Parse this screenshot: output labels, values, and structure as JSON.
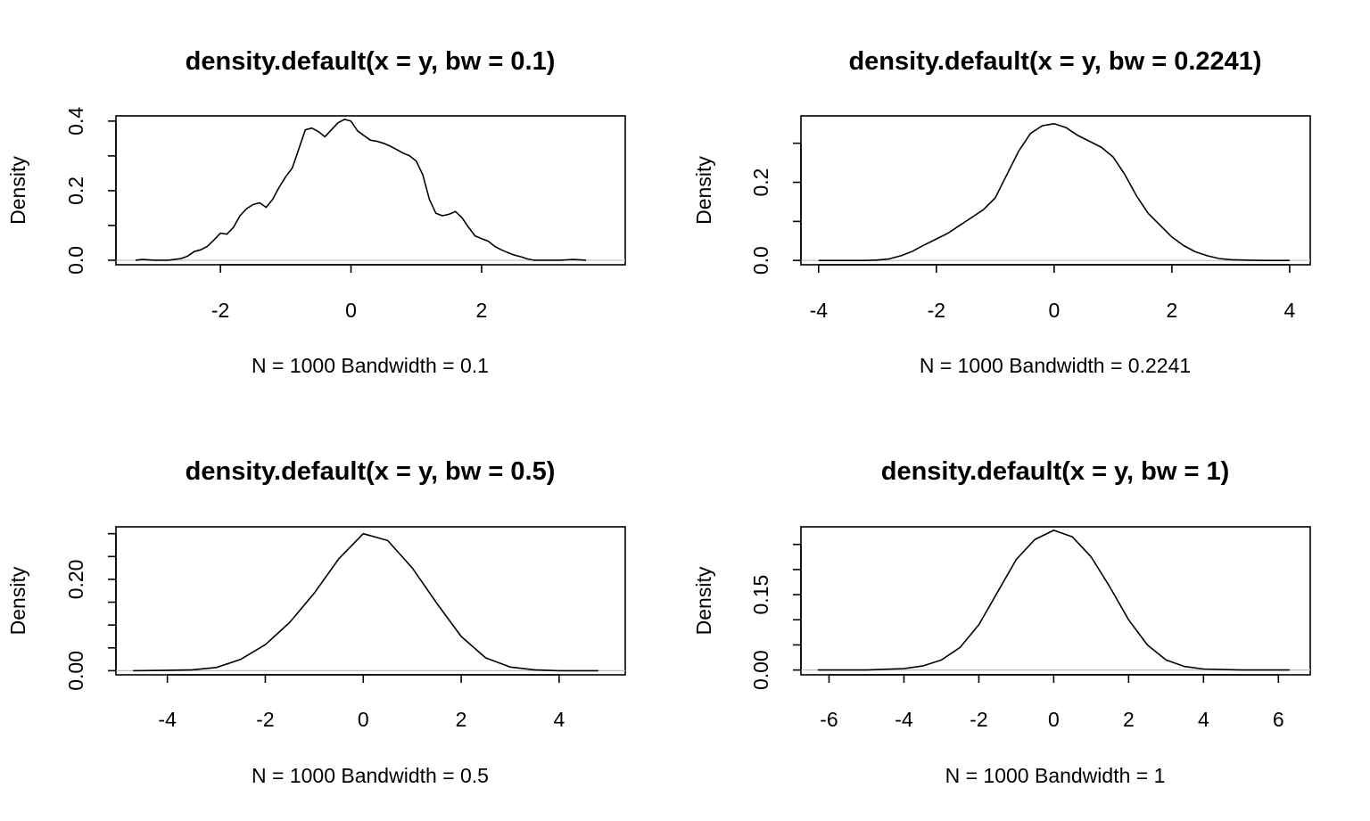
{
  "chart_data": [
    {
      "type": "line",
      "title": "density.default(x = y, bw = 0.1)",
      "xlabel": "N = 1000   Bandwidth = 0.1",
      "ylabel": "Density",
      "xlim": [
        -3.6,
        4.2
      ],
      "ylim": [
        -0.013,
        0.415
      ],
      "xticks": [
        -2,
        0,
        2
      ],
      "xtick_labels": [
        "-2",
        "0",
        "2"
      ],
      "yticks": [
        0.0,
        0.1,
        0.2,
        0.3,
        0.4
      ],
      "ytick_labels": {
        "0": "0.0",
        "0.2": "0.2",
        "0.4": "0.4"
      },
      "x": [
        -3.3,
        -3.2,
        -3.0,
        -2.8,
        -2.6,
        -2.5,
        -2.4,
        -2.3,
        -2.2,
        -2.1,
        -2.0,
        -1.9,
        -1.8,
        -1.7,
        -1.6,
        -1.5,
        -1.4,
        -1.3,
        -1.2,
        -1.1,
        -1.0,
        -0.9,
        -0.8,
        -0.7,
        -0.6,
        -0.5,
        -0.4,
        -0.3,
        -0.2,
        -0.1,
        0.0,
        0.1,
        0.2,
        0.3,
        0.4,
        0.5,
        0.6,
        0.7,
        0.8,
        0.9,
        1.0,
        1.1,
        1.2,
        1.3,
        1.4,
        1.5,
        1.6,
        1.7,
        1.8,
        1.9,
        2.0,
        2.1,
        2.2,
        2.3,
        2.4,
        2.5,
        2.6,
        2.7,
        2.8,
        3.0,
        3.2,
        3.4,
        3.6
      ],
      "y": [
        0.0,
        0.002,
        0.0,
        0.0,
        0.005,
        0.012,
        0.025,
        0.03,
        0.04,
        0.058,
        0.078,
        0.075,
        0.095,
        0.128,
        0.148,
        0.16,
        0.165,
        0.152,
        0.175,
        0.21,
        0.24,
        0.265,
        0.32,
        0.375,
        0.38,
        0.37,
        0.355,
        0.375,
        0.395,
        0.405,
        0.4,
        0.372,
        0.358,
        0.345,
        0.342,
        0.336,
        0.328,
        0.318,
        0.308,
        0.3,
        0.285,
        0.245,
        0.175,
        0.135,
        0.128,
        0.132,
        0.14,
        0.122,
        0.095,
        0.07,
        0.062,
        0.055,
        0.04,
        0.03,
        0.022,
        0.015,
        0.01,
        0.004,
        0.0,
        0.0,
        0.0,
        0.002,
        0.0
      ]
    },
    {
      "type": "line",
      "title": "density.default(x = y, bw = 0.2241)",
      "xlabel": "N = 1000   Bandwidth = 0.2241",
      "ylabel": "Density",
      "xlim": [
        -4.3,
        4.35
      ],
      "ylim": [
        -0.011,
        0.37
      ],
      "xticks": [
        -4,
        -2,
        0,
        2,
        4
      ],
      "xtick_labels": [
        "-4",
        "-2",
        "0",
        "2",
        "4"
      ],
      "yticks": [
        0.0,
        0.1,
        0.2,
        0.3
      ],
      "ytick_labels": {
        "0": "0.0",
        "0.2": "0.2"
      },
      "x": [
        -4.0,
        -3.6,
        -3.2,
        -3.0,
        -2.8,
        -2.6,
        -2.4,
        -2.2,
        -2.0,
        -1.8,
        -1.6,
        -1.4,
        -1.2,
        -1.0,
        -0.8,
        -0.6,
        -0.4,
        -0.2,
        0.0,
        0.2,
        0.4,
        0.6,
        0.8,
        1.0,
        1.2,
        1.4,
        1.6,
        1.8,
        2.0,
        2.2,
        2.4,
        2.6,
        2.8,
        3.0,
        3.2,
        3.6,
        4.0
      ],
      "y": [
        0.0,
        0.0,
        0.0,
        0.001,
        0.004,
        0.012,
        0.024,
        0.04,
        0.055,
        0.07,
        0.09,
        0.11,
        0.13,
        0.16,
        0.22,
        0.28,
        0.325,
        0.345,
        0.35,
        0.34,
        0.32,
        0.305,
        0.29,
        0.265,
        0.22,
        0.165,
        0.12,
        0.09,
        0.06,
        0.038,
        0.022,
        0.012,
        0.005,
        0.002,
        0.001,
        0.0,
        0.0
      ]
    },
    {
      "type": "line",
      "title": "density.default(x = y, bw = 0.5)",
      "xlabel": "N = 1000   Bandwidth = 0.5",
      "ylabel": "Density",
      "xlim": [
        -5.05,
        5.35
      ],
      "ylim": [
        -0.009,
        0.315
      ],
      "xticks": [
        -4,
        -2,
        0,
        2,
        4
      ],
      "xtick_labels": [
        "-4",
        "-2",
        "0",
        "2",
        "4"
      ],
      "yticks": [
        0.0,
        0.05,
        0.1,
        0.15,
        0.2,
        0.25,
        0.3
      ],
      "ytick_labels": {
        "0": "0.00",
        "0.2": "0.20"
      },
      "x": [
        -4.7,
        -4.0,
        -3.5,
        -3.0,
        -2.5,
        -2.0,
        -1.5,
        -1.0,
        -0.5,
        0.0,
        0.5,
        1.0,
        1.5,
        2.0,
        2.5,
        3.0,
        3.5,
        4.0,
        4.8
      ],
      "y": [
        0.0,
        0.001,
        0.002,
        0.007,
        0.025,
        0.057,
        0.106,
        0.17,
        0.245,
        0.3,
        0.285,
        0.225,
        0.148,
        0.075,
        0.028,
        0.008,
        0.002,
        0.0,
        0.0
      ]
    },
    {
      "type": "line",
      "title": "density.default(x = y, bw = 1)",
      "xlabel": "N = 1000   Bandwidth = 1",
      "ylabel": "Density",
      "xlim": [
        -6.75,
        6.85
      ],
      "ylim": [
        -0.0095,
        0.285
      ],
      "xticks": [
        -6,
        -4,
        -2,
        0,
        2,
        4,
        6
      ],
      "xtick_labels": [
        "-6",
        "-4",
        "-2",
        "0",
        "2",
        "4",
        "6"
      ],
      "yticks": [
        0.0,
        0.05,
        0.1,
        0.15,
        0.2,
        0.25
      ],
      "ytick_labels": {
        "0": "0.00",
        "0.15": "0.15"
      },
      "x": [
        -6.3,
        -5.0,
        -4.0,
        -3.5,
        -3.0,
        -2.5,
        -2.0,
        -1.5,
        -1.0,
        -0.5,
        0.0,
        0.5,
        1.0,
        1.5,
        2.0,
        2.5,
        3.0,
        3.5,
        4.0,
        5.0,
        6.3
      ],
      "y": [
        0.0,
        0.0,
        0.003,
        0.008,
        0.02,
        0.045,
        0.09,
        0.155,
        0.22,
        0.26,
        0.278,
        0.265,
        0.225,
        0.165,
        0.1,
        0.05,
        0.02,
        0.007,
        0.002,
        0.0,
        0.0
      ]
    }
  ]
}
